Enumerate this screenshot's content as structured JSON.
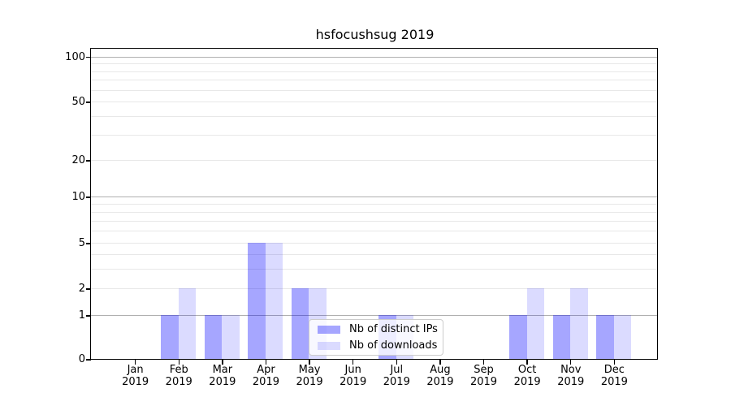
{
  "chart": {
    "y_axis": {
      "tick_values": [
        100,
        50,
        20,
        10,
        5,
        2,
        1,
        0
      ],
      "tick_labels": [
        "100",
        "50",
        "20",
        "10",
        "5",
        "2",
        "1",
        "0"
      ]
    },
    "legend": {
      "items": [
        {
          "label": "Nb of distinct IPs",
          "swatch_color": "rgba(0,0,255,0.35)"
        },
        {
          "label": "Nb of downloads",
          "swatch_color": "rgba(0,0,255,0.14)"
        }
      ]
    },
    "colors": {
      "distinct_ips_bar": "rgba(0,0,255,0.35)",
      "downloads_bar": "rgba(0,0,255,0.14)",
      "grid_major": "#b0b0b0",
      "grid_minor": "#e8e8e8",
      "axis_spine": "#000000"
    }
  },
  "chart_data": {
    "type": "bar",
    "title": "hsfocushsug 2019",
    "categories": [
      "Jan 2019",
      "Feb 2019",
      "Mar 2019",
      "Apr 2019",
      "May 2019",
      "Jun 2019",
      "Jul 2019",
      "Aug 2019",
      "Sep 2019",
      "Oct 2019",
      "Nov 2019",
      "Dec 2019"
    ],
    "series": [
      {
        "name": "Nb of distinct IPs",
        "values": [
          0,
          1,
          1,
          5,
          2,
          0,
          1,
          0,
          0,
          1,
          1,
          1
        ]
      },
      {
        "name": "Nb of downloads",
        "values": [
          0,
          2,
          1,
          5,
          2,
          0,
          1,
          0,
          0,
          2,
          2,
          1
        ]
      }
    ],
    "yscale": "log",
    "ytick_labels": [
      "0",
      "1",
      "2",
      "5",
      "10",
      "20",
      "50",
      "100"
    ],
    "ylim_top_label": "100",
    "grid": "horizontal",
    "legend_position": "lower center"
  }
}
